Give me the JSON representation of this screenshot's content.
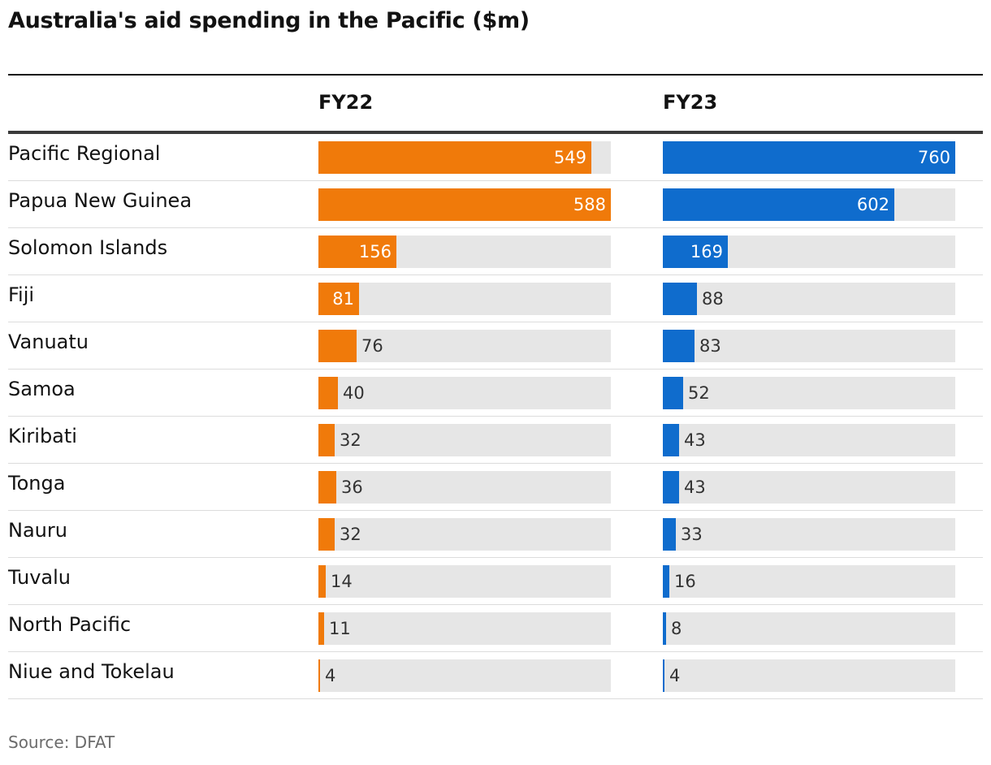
{
  "title": "Australia's aid spending in the Pacific ($m)",
  "source": "Source: DFAT",
  "colors": {
    "fy22": "#f07a0a",
    "fy23": "#0f6ccd",
    "track": "#e6e6e6"
  },
  "chart_data": {
    "type": "bar",
    "title": "Australia's aid spending in the Pacific ($m)",
    "categories": [
      "Pacific Regional",
      "Papua New Guinea",
      "Solomon Islands",
      "Fiji",
      "Vanuatu",
      "Samoa",
      "Kiribati",
      "Tonga",
      "Nauru",
      "Tuvalu",
      "North Pacific",
      "Niue and Tokelau"
    ],
    "series": [
      {
        "name": "FY22",
        "values": [
          549,
          588,
          156,
          81,
          76,
          40,
          32,
          36,
          32,
          14,
          11,
          4
        ]
      },
      {
        "name": "FY23",
        "values": [
          760,
          602,
          169,
          88,
          83,
          52,
          43,
          43,
          33,
          16,
          8,
          4
        ]
      }
    ],
    "xlim": {
      "FY22": [
        0,
        588
      ],
      "FY23": [
        0,
        760
      ]
    },
    "grid": false
  }
}
